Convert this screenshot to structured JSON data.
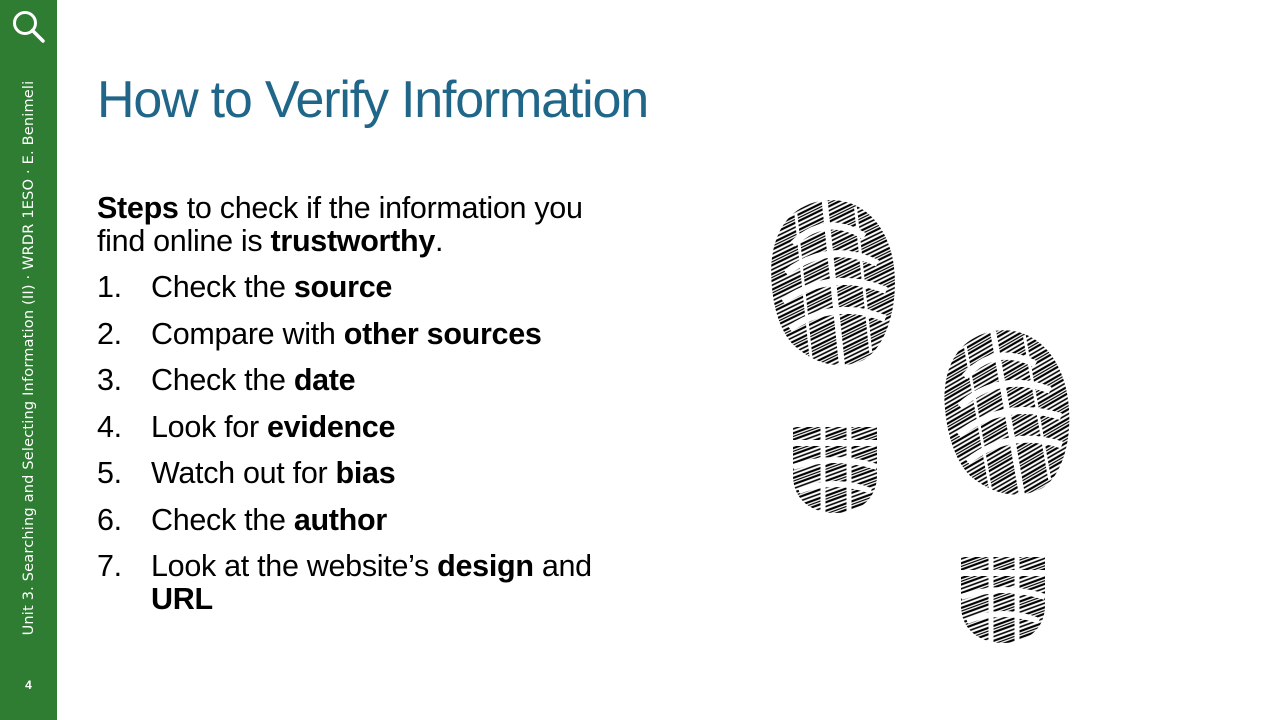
{
  "sidebar": {
    "text": "Unit 3. Searching and Selecting Information (II) · WRDR 1ESO · E. Benimeli",
    "page_number": "4",
    "icon": "search-icon",
    "color": "#2e7d32"
  },
  "slide": {
    "title": "How to Verify Information",
    "title_color": "#1f6689",
    "intro": {
      "bold_1": "Steps",
      "text_1": " to check if the information you find online is ",
      "bold_2": "trustworthy",
      "text_2": "."
    },
    "steps": [
      {
        "num": "1.",
        "text": "Check the ",
        "bold": "source",
        "after": "",
        "bold2": ""
      },
      {
        "num": "2.",
        "text": "Compare with ",
        "bold": "other sources",
        "after": "",
        "bold2": ""
      },
      {
        "num": "3.",
        "text": "Check the ",
        "bold": "date",
        "after": "",
        "bold2": ""
      },
      {
        "num": "4.",
        "text": "Look for ",
        "bold": "evidence",
        "after": "",
        "bold2": ""
      },
      {
        "num": "5.",
        "text": "Watch out for ",
        "bold": "bias",
        "after": "",
        "bold2": ""
      },
      {
        "num": "6.",
        "text": "Check the ",
        "bold": "author",
        "after": "",
        "bold2": ""
      },
      {
        "num": "7.",
        "text": "Look at the website’s ",
        "bold": "design",
        "after": " and ",
        "bold2": "URL"
      }
    ],
    "illustration": "footprints-icon"
  }
}
